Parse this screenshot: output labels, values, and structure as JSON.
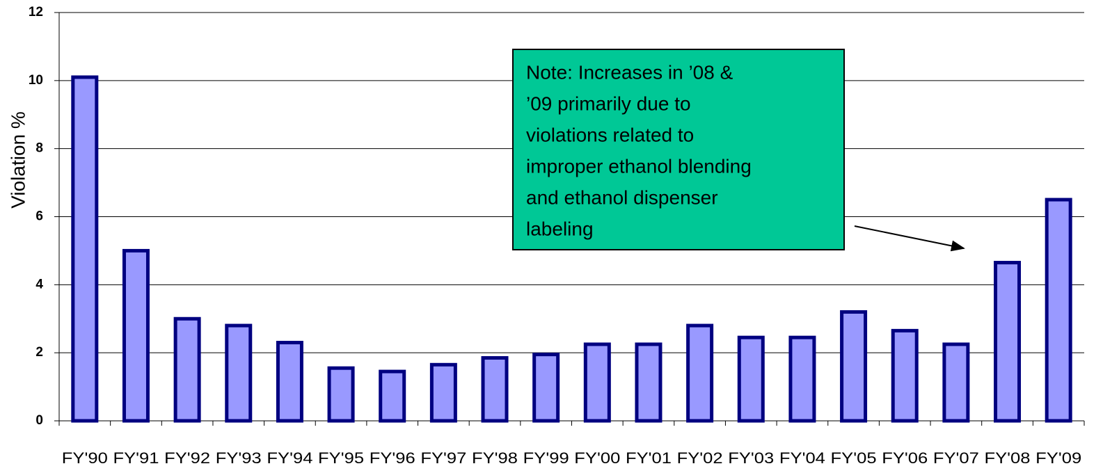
{
  "chart_data": {
    "type": "bar",
    "y_label": "Violation %",
    "categories": [
      "FY'90",
      "FY'91",
      "FY'92",
      "FY'93",
      "FY'94",
      "FY'95",
      "FY'96",
      "FY'97",
      "FY'98",
      "FY'99",
      "FY'00",
      "FY'01",
      "FY'02",
      "FY'03",
      "FY'04",
      "FY'05",
      "FY'06",
      "FY'07",
      "FY'08",
      "FY'09"
    ],
    "values": [
      10.1,
      5.0,
      3.0,
      2.8,
      2.3,
      1.55,
      1.45,
      1.65,
      1.85,
      1.95,
      2.25,
      2.25,
      2.8,
      2.45,
      2.45,
      3.2,
      2.65,
      2.25,
      4.65,
      6.5
    ],
    "color": "#9999ff",
    "edge_color": "#000080",
    "ylim": [
      0,
      12
    ],
    "yticks": [
      0,
      2,
      4,
      6,
      8,
      10,
      12
    ],
    "grid": true,
    "annotation": [
      "Note:  Increases in ’08 &",
      "’09 primarily due to",
      "violations related to",
      "improper ethanol blending",
      "and ethanol dispenser",
      "labeling"
    ],
    "annotation_color": "#00c896"
  }
}
